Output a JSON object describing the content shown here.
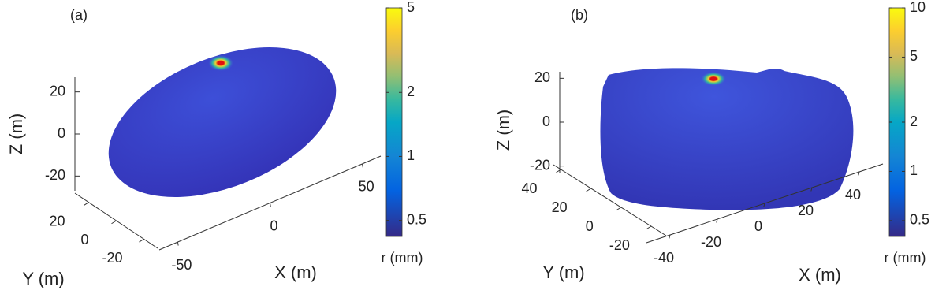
{
  "chart_data": [
    {
      "type": "surface3d",
      "title": "(a)",
      "xlabel": "X (m)",
      "ylabel": "Y (m)",
      "zlabel": "Z (m)",
      "xlim": [
        -60,
        60
      ],
      "xticks": [
        -50,
        0,
        50
      ],
      "ylim": [
        -30,
        30
      ],
      "yticks": [
        -20,
        0,
        20
      ],
      "zlim": [
        -27,
        27
      ],
      "zticks": [
        -20,
        0,
        20
      ],
      "colormap": "parula",
      "colorbar": {
        "label": "r (mm)",
        "scale": "log",
        "lim": [
          0.42,
          5
        ],
        "ticks": [
          0.5,
          1,
          2,
          5
        ]
      }
    },
    {
      "type": "surface3d",
      "title": "(b)",
      "xlabel": "X (m)",
      "ylabel": "Y (m)",
      "zlabel": "Z (m)",
      "xlim": [
        -50,
        50
      ],
      "xticks": [
        -40,
        -20,
        0,
        20,
        40
      ],
      "ylim": [
        -30,
        45
      ],
      "yticks": [
        -20,
        0,
        20,
        40
      ],
      "zlim": [
        -23,
        23
      ],
      "zticks": [
        -20,
        0,
        20
      ],
      "colormap": "parula",
      "colorbar": {
        "label": "r (mm)",
        "scale": "log",
        "lim": [
          0.4,
          10
        ],
        "ticks": [
          0.5,
          1,
          2,
          5,
          10
        ]
      }
    }
  ]
}
